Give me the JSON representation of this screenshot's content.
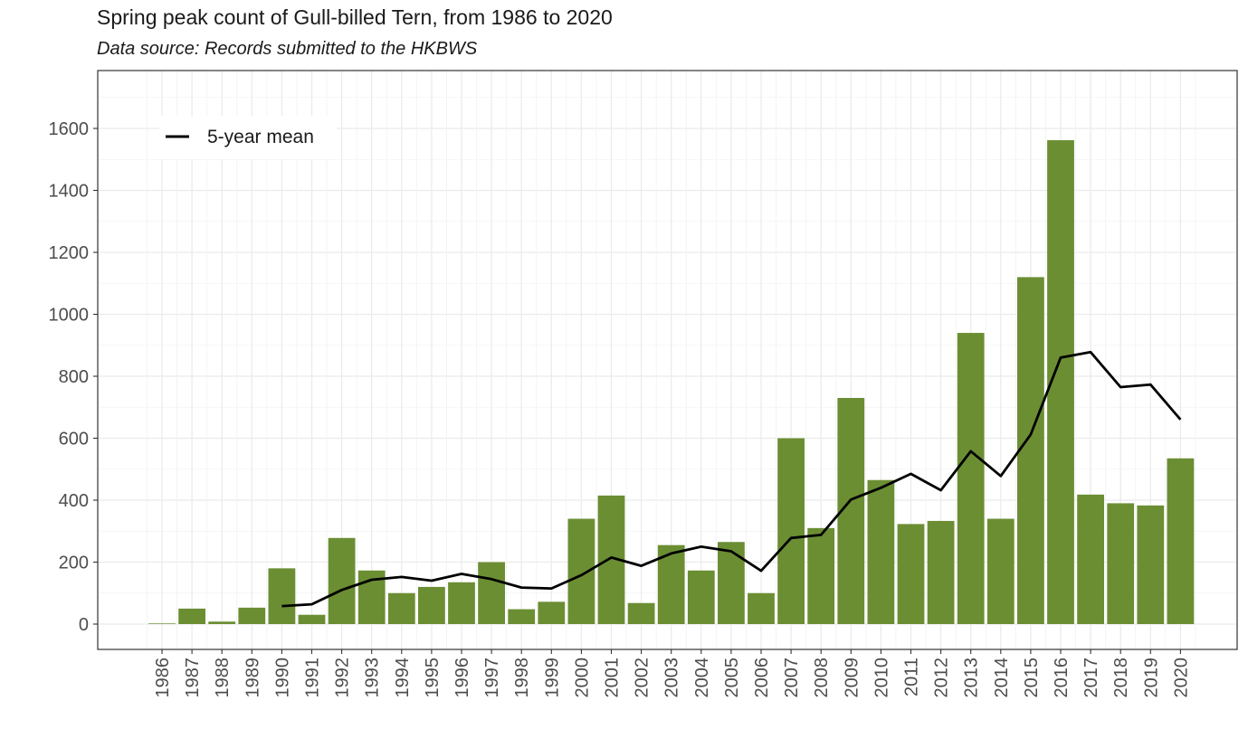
{
  "chart_data": {
    "type": "bar",
    "title": "Spring peak count of Gull-billed Tern, from 1986 to 2020",
    "subtitle": "Data source: Records submitted to the HKBWS",
    "xlabel": "",
    "ylabel": "",
    "ylim": [
      -80,
      1780
    ],
    "yticks": [
      0,
      200,
      400,
      600,
      800,
      1000,
      1200,
      1400,
      1600
    ],
    "bar_color": "#6b8e33",
    "line_color": "#000000",
    "categories": [
      "1986",
      "1987",
      "1988",
      "1989",
      "1990",
      "1991",
      "1992",
      "1993",
      "1994",
      "1995",
      "1996",
      "1997",
      "1998",
      "1999",
      "2000",
      "2001",
      "2002",
      "2003",
      "2004",
      "2005",
      "2006",
      "2007",
      "2008",
      "2009",
      "2010",
      "2011",
      "2012",
      "2013",
      "2014",
      "2015",
      "2016",
      "2017",
      "2018",
      "2019",
      "2020"
    ],
    "series": [
      {
        "name": "Spring peak count",
        "type": "bar",
        "values": [
          2,
          50,
          8,
          53,
          180,
          30,
          278,
          173,
          100,
          120,
          135,
          200,
          48,
          72,
          340,
          415,
          68,
          255,
          173,
          265,
          100,
          600,
          310,
          730,
          465,
          323,
          333,
          940,
          340,
          1120,
          1562,
          418,
          390,
          383,
          535
        ]
      },
      {
        "name": "5-year mean",
        "type": "line",
        "values": [
          null,
          null,
          null,
          null,
          58,
          64,
          110,
          143,
          152,
          140,
          162,
          145,
          118,
          115,
          158,
          215,
          188,
          228,
          250,
          235,
          172,
          278,
          288,
          402,
          440,
          485,
          432,
          558,
          478,
          612,
          860,
          878,
          765,
          773,
          660
        ]
      }
    ],
    "legend": {
      "label": "5-year mean",
      "position": "top-left"
    }
  }
}
